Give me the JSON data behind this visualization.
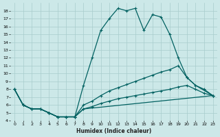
{
  "xlabel": "Humidex (Indice chaleur)",
  "xlim": [
    -0.5,
    23.5
  ],
  "ylim": [
    4,
    19
  ],
  "yticks": [
    4,
    5,
    6,
    7,
    8,
    9,
    10,
    11,
    12,
    13,
    14,
    15,
    16,
    17,
    18
  ],
  "xticks": [
    0,
    1,
    2,
    3,
    4,
    5,
    6,
    7,
    8,
    9,
    10,
    11,
    12,
    13,
    14,
    15,
    16,
    17,
    18,
    19,
    20,
    21,
    22,
    23
  ],
  "bg_color": "#cce8e8",
  "grid_color": "#a8cccc",
  "line_color": "#006060",
  "curve1_x": [
    0,
    1,
    2,
    3,
    4,
    5,
    6,
    7,
    8,
    9,
    10,
    11,
    12,
    13,
    14,
    15,
    16,
    17,
    18,
    19,
    20,
    21,
    23
  ],
  "curve1_y": [
    8,
    6,
    5.5,
    5.5,
    5,
    4.5,
    4.5,
    4.5,
    8.5,
    12,
    15.5,
    17,
    18.3,
    18,
    18.3,
    15.5,
    17.5,
    17.2,
    15,
    12,
    9.5,
    8.5,
    7.2
  ],
  "curve2_x": [
    0,
    1,
    2,
    3,
    4,
    5,
    6,
    7,
    8,
    23
  ],
  "curve2_y": [
    8,
    6,
    5.5,
    5.5,
    5,
    4.5,
    4.5,
    4.5,
    5.5,
    7.2
  ],
  "curve3_x": [
    0,
    1,
    2,
    3,
    4,
    5,
    6,
    7,
    8,
    9,
    10,
    11,
    12,
    13,
    14,
    15,
    16,
    17,
    18,
    19,
    20,
    21,
    22,
    23
  ],
  "curve3_y": [
    8,
    6,
    5.5,
    5.5,
    5,
    4.5,
    4.5,
    4.5,
    6.0,
    6.5,
    7.2,
    7.8,
    8.2,
    8.6,
    9.0,
    9.4,
    9.8,
    10.2,
    10.5,
    11.0,
    9.5,
    8.5,
    8.0,
    7.2
  ],
  "curve4_x": [
    0,
    1,
    2,
    3,
    4,
    5,
    6,
    7,
    8,
    9,
    10,
    11,
    12,
    13,
    14,
    15,
    16,
    17,
    18,
    19,
    20,
    21,
    22,
    23
  ],
  "curve4_y": [
    8,
    6,
    5.5,
    5.5,
    5,
    4.5,
    4.5,
    4.5,
    5.5,
    5.8,
    6.2,
    6.5,
    6.8,
    7.0,
    7.2,
    7.4,
    7.6,
    7.8,
    8.0,
    8.3,
    8.5,
    8.0,
    7.5,
    7.2
  ]
}
